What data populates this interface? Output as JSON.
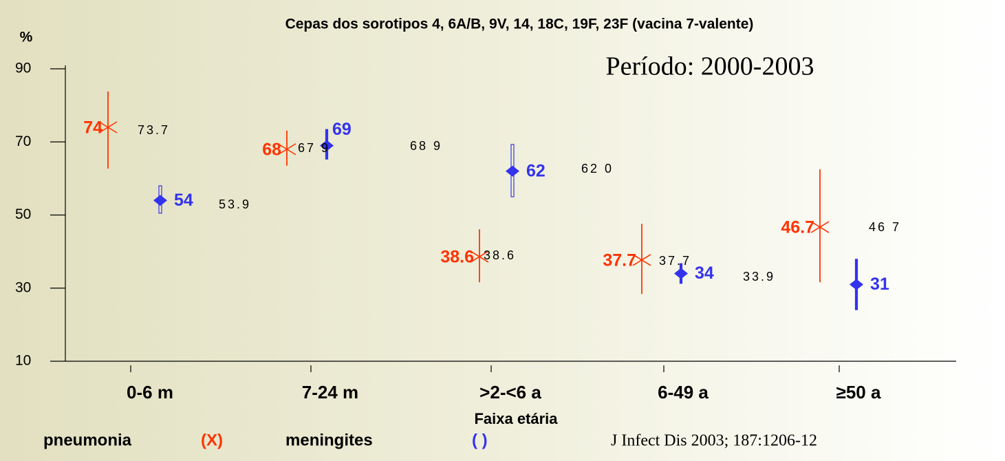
{
  "chart_data": {
    "type": "errorbar",
    "title": "Cepas dos sorotipos 4, 6A/B, 9V, 14, 18C, 19F, 23F (vacina 7-valente)",
    "subtitle": "Período: 2000-2003",
    "ylabel": "%",
    "xlabel": "Faixa etária",
    "source": "J Infect Dis 2003; 187:1206-12",
    "categories": [
      "0-6 m",
      "7-24 m",
      ">2-<6 a",
      "6-49 a",
      "≥50 a"
    ],
    "ylim": [
      10,
      90
    ],
    "yticks": [
      10,
      30,
      50,
      70,
      90
    ],
    "series": [
      {
        "name": "pneumonia",
        "legend_symbol": "(X)",
        "color": "#ff3300",
        "marker": "x",
        "values": [
          74,
          68,
          38.6,
          37.7,
          46.7
        ],
        "lower": [
          62.7,
          63.5,
          31.6,
          28.4,
          31.6
        ],
        "upper": [
          83.8,
          73.1,
          46.1,
          47.6,
          62.5
        ]
      },
      {
        "name": "meningites",
        "legend_symbol": "( )",
        "color": "#3333ee",
        "marker": "diamond",
        "values": [
          54,
          69,
          62,
          34,
          31
        ],
        "lower": [
          50.5,
          65.3,
          55,
          31.3,
          24.1
        ],
        "upper": [
          58,
          73.4,
          69.3,
          36.7,
          37.9
        ]
      }
    ],
    "annotations": [
      "73.7",
      "67 9",
      "68 9",
      "62 0",
      "53.9",
      "38.6",
      "37.7",
      "33.9",
      "46 7"
    ]
  }
}
